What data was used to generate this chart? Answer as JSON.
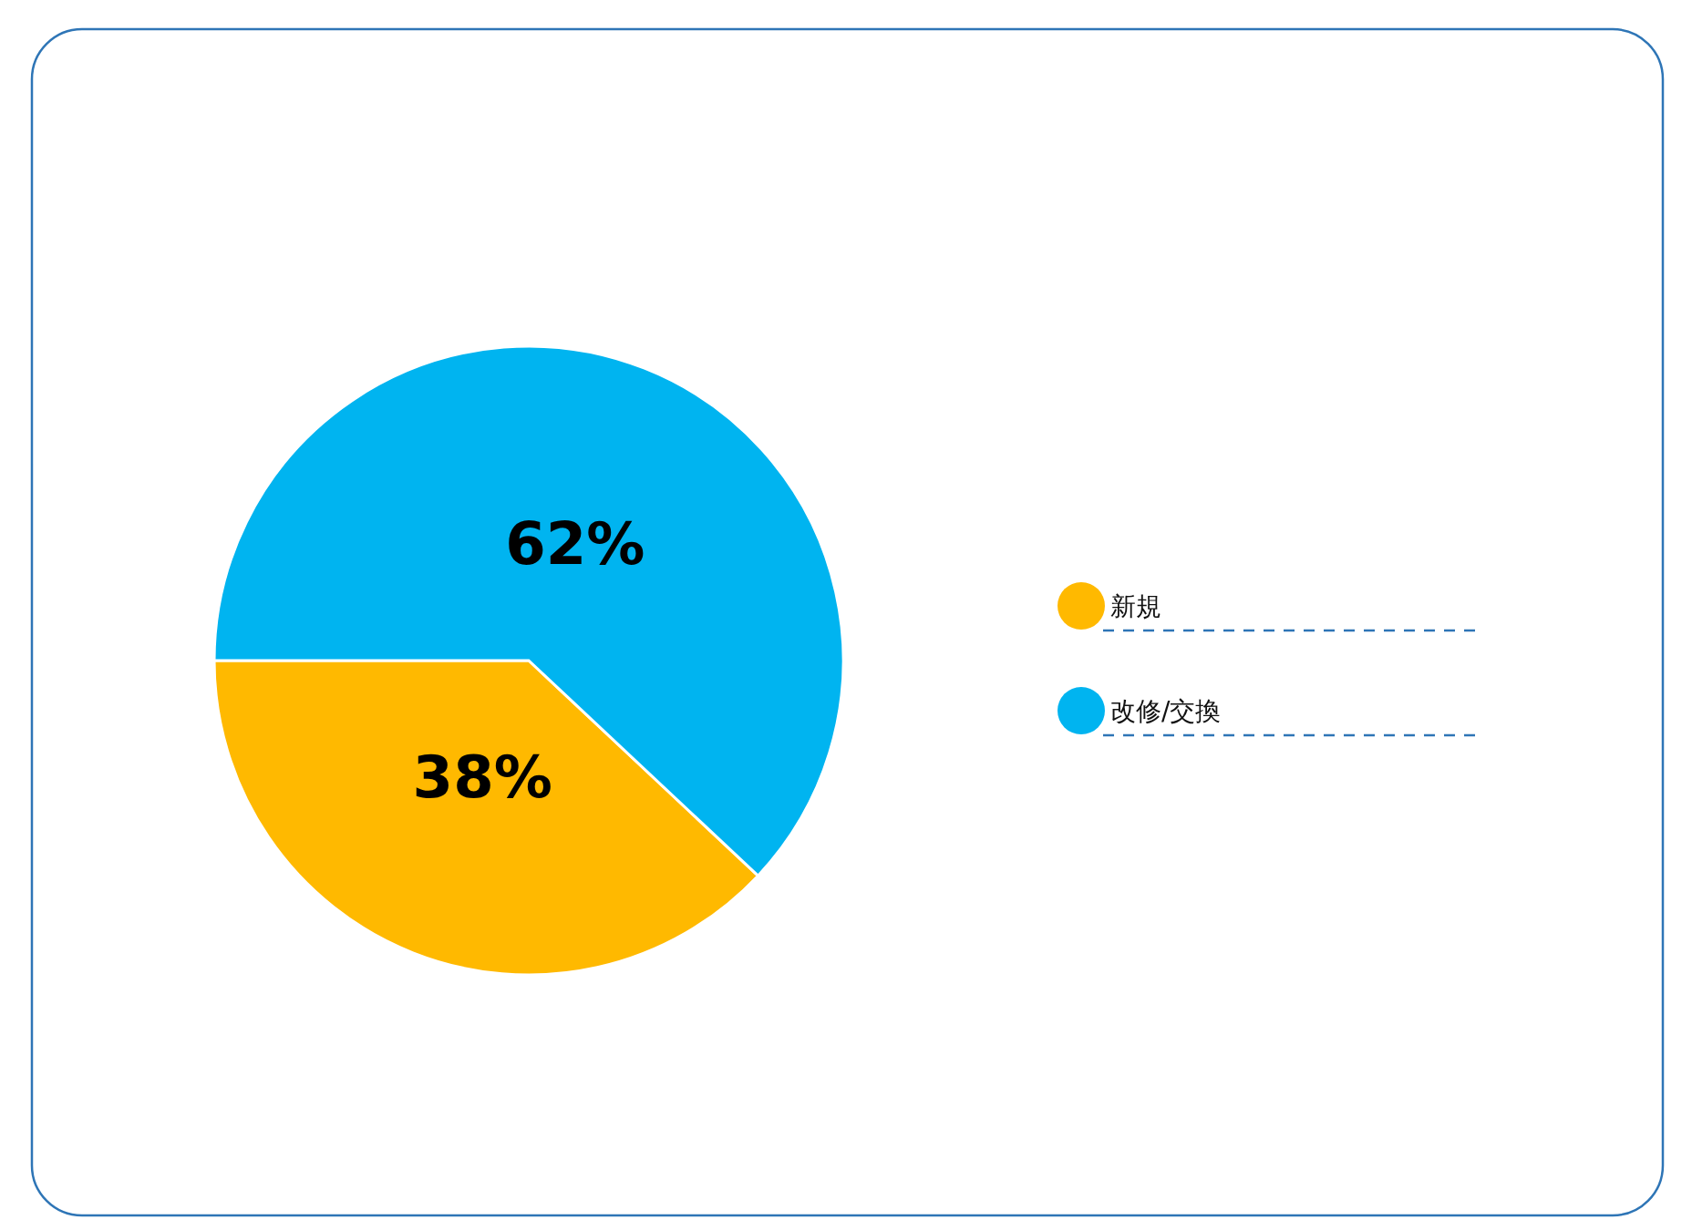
{
  "chart_data": {
    "type": "pie",
    "categories": [
      "新規",
      "改修/交換"
    ],
    "values": [
      38,
      62
    ],
    "colors": [
      "#ffb900",
      "#00b4f0"
    ],
    "value_labels": [
      "38%",
      "62%"
    ],
    "legend": "right"
  }
}
